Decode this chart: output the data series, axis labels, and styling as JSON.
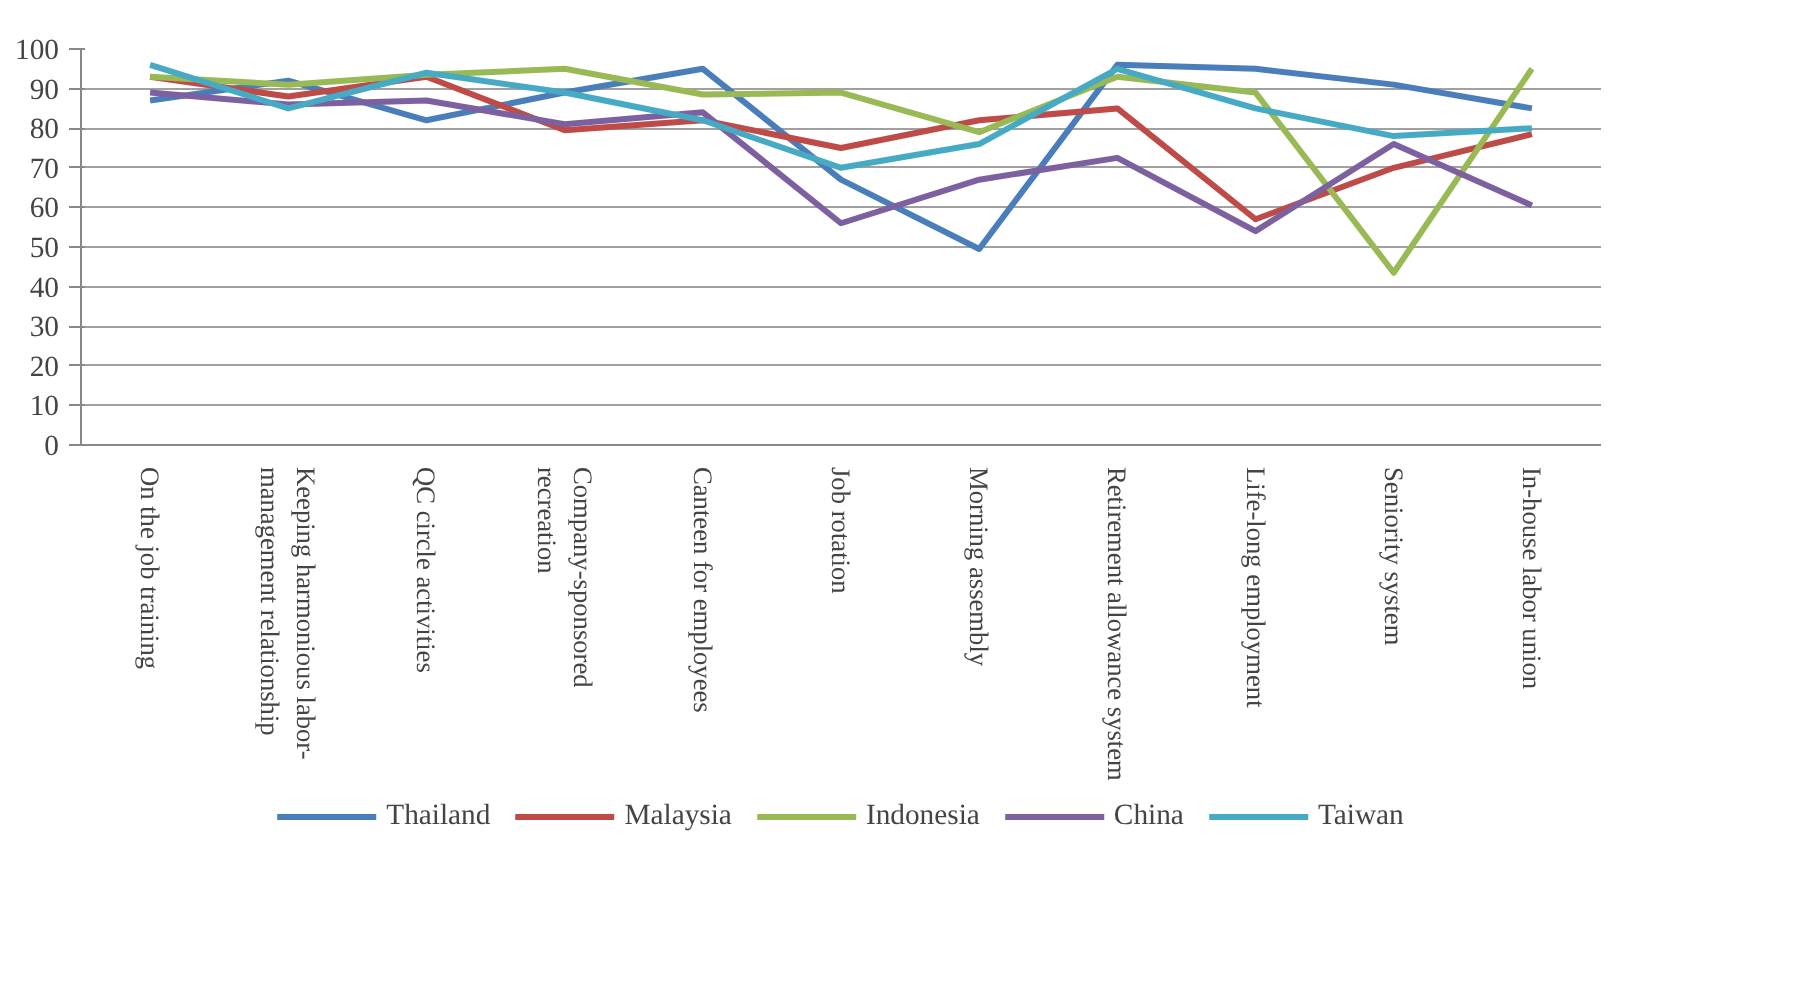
{
  "chart_data": {
    "type": "line",
    "categories": [
      "On the job training",
      "Keeping harmonious labor-management relationship",
      "QC circle activities",
      "Company-sponsored recreation",
      "Canteen for employees",
      "Job rotation",
      "Morning assembly",
      "Retirement allowance system",
      "Life-long employment",
      "Seniority system",
      "In-house labor union"
    ],
    "series": [
      {
        "name": "Thailand",
        "color": "#4a7ebb",
        "values": [
          87,
          92,
          82,
          89,
          95,
          67,
          49.5,
          96,
          95,
          91,
          85
        ]
      },
      {
        "name": "Malaysia",
        "color": "#be4b48",
        "values": [
          93,
          88,
          93,
          79.5,
          82,
          75,
          82,
          85,
          57,
          70,
          78.5
        ]
      },
      {
        "name": "Indonesia",
        "color": "#98b954",
        "values": [
          93,
          91,
          93.5,
          95,
          88.5,
          89,
          79,
          93,
          89,
          43.5,
          95
        ]
      },
      {
        "name": "China",
        "color": "#7d60a0",
        "values": [
          89,
          86,
          87,
          81,
          84,
          56,
          67,
          72.5,
          54,
          76,
          60.5
        ]
      },
      {
        "name": "Taiwan",
        "color": "#46aac5",
        "values": [
          96,
          85,
          94,
          89,
          82,
          70,
          76,
          95,
          85,
          78,
          80
        ]
      }
    ],
    "ylim": [
      0,
      100
    ],
    "yticks": [
      0,
      10,
      20,
      30,
      40,
      50,
      60,
      70,
      80,
      90,
      100
    ],
    "grid": "y",
    "legend": "bottom",
    "marker": "none",
    "line_style": "solid"
  }
}
